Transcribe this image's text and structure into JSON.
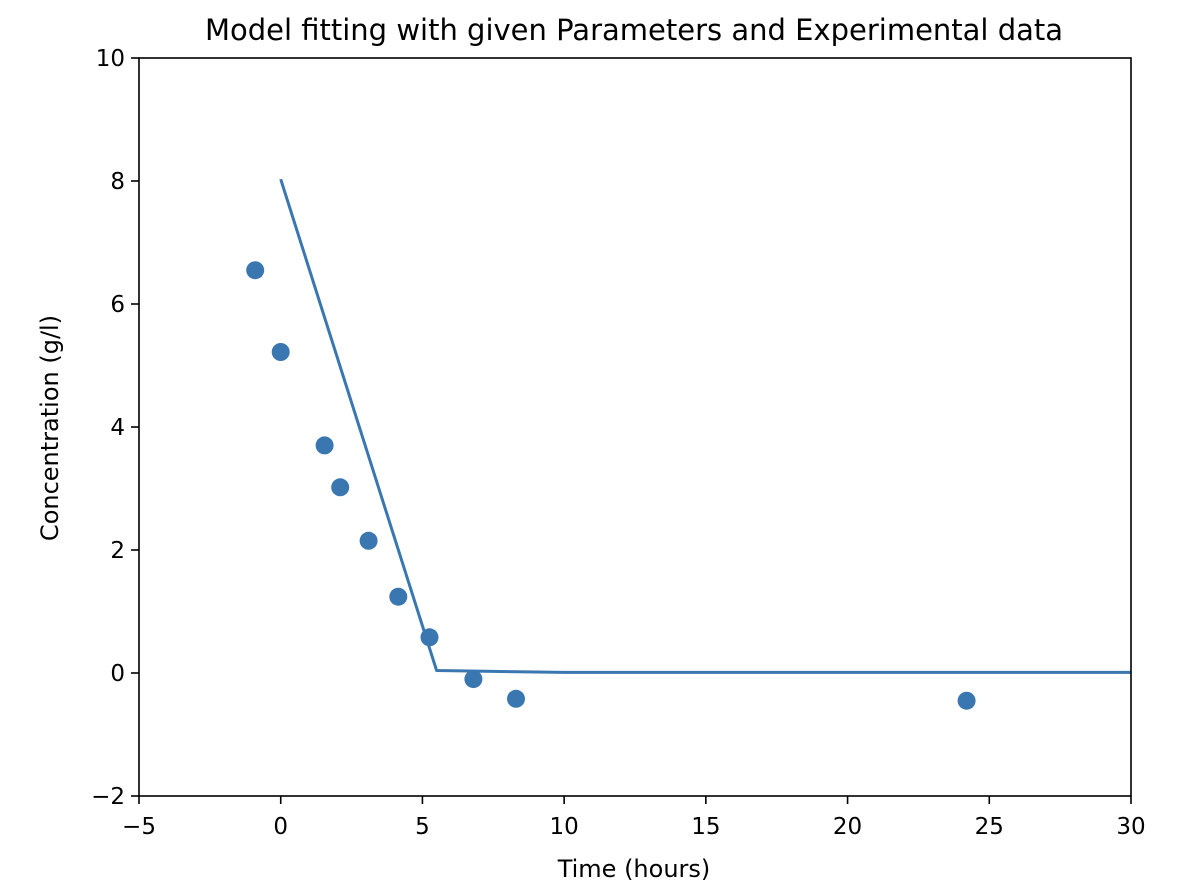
{
  "chart_data": {
    "type": "scatter",
    "title": "Model fitting with given Parameters and Experimental data",
    "xlabel": "Time (hours)",
    "ylabel": "Concentration (g/l)",
    "xlim": [
      -5,
      30
    ],
    "ylim": [
      -2,
      10
    ],
    "x_ticks": [
      -5,
      0,
      5,
      10,
      15,
      20,
      25,
      30
    ],
    "y_ticks": [
      -2,
      0,
      2,
      4,
      6,
      8,
      10
    ],
    "x_tick_labels": [
      "−5",
      "0",
      "5",
      "10",
      "15",
      "20",
      "25",
      "30"
    ],
    "y_tick_labels": [
      "−2",
      "0",
      "2",
      "4",
      "6",
      "8",
      "10"
    ],
    "grid": false,
    "color": "#3a76b0",
    "series": [
      {
        "kind": "scatter",
        "points": [
          [
            -0.9,
            6.55
          ],
          [
            0.0,
            5.22
          ],
          [
            1.55,
            3.7
          ],
          [
            2.1,
            3.02
          ],
          [
            3.1,
            2.15
          ],
          [
            4.15,
            1.24
          ],
          [
            5.25,
            0.58
          ],
          [
            6.8,
            -0.1
          ],
          [
            8.3,
            -0.42
          ],
          [
            24.2,
            -0.45
          ]
        ]
      },
      {
        "kind": "line",
        "points": [
          [
            0.0,
            8.03
          ],
          [
            5.5,
            0.04
          ],
          [
            10.0,
            0.01
          ],
          [
            30.0,
            0.01
          ]
        ]
      }
    ]
  }
}
